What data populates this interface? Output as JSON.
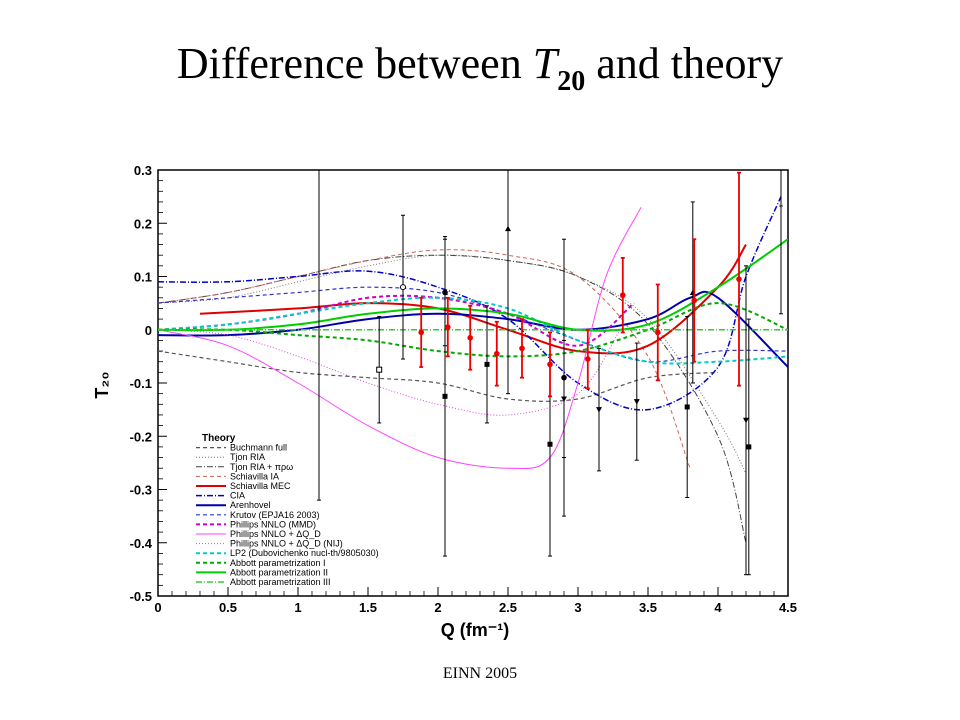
{
  "slide": {
    "title_prefix": "Difference between ",
    "title_symbol": "T",
    "title_subscript": "20",
    "title_suffix": " and theory",
    "footer": "EINN 2005"
  },
  "chart_data": {
    "type": "scatter",
    "xlabel": "Q (fm⁻¹)",
    "ylabel": "T₂₀",
    "xlim": [
      0,
      4.5
    ],
    "ylim": [
      -0.5,
      0.3
    ],
    "xticks": [
      "0",
      "0.5",
      "1",
      "1.5",
      "2",
      "2.5",
      "3",
      "3.5",
      "4",
      "4.5"
    ],
    "yticks": [
      "-0.5",
      "-0.4",
      "-0.3",
      "-0.2",
      "-0.1",
      "0",
      "0.1",
      "0.2",
      "0.3"
    ],
    "grid": false,
    "legend_title": "Theory",
    "legend_position": "lower-left",
    "series": [
      {
        "name": "Buchmann full",
        "color": "#555555",
        "dash": "4,3",
        "width": 1.2,
        "x": [
          0,
          0.5,
          1,
          1.5,
          2,
          2.5,
          3,
          3.5,
          4
        ],
        "y": [
          -0.04,
          -0.06,
          -0.08,
          -0.09,
          -0.1,
          -0.13,
          -0.13,
          -0.09,
          -0.08
        ]
      },
      {
        "name": "Tjon RIA",
        "color": "#777777",
        "dash": "1,2",
        "width": 1,
        "x": [
          0,
          0.5,
          1,
          1.5,
          2,
          2.5,
          3,
          3.5,
          4,
          4.2
        ],
        "y": [
          0.05,
          0.06,
          0.09,
          0.12,
          0.14,
          0.13,
          0.1,
          0.02,
          -0.17,
          -0.27
        ]
      },
      {
        "name": "Tjon RIA + πρω",
        "color": "#444444",
        "dash": "6,2,1,2",
        "width": 1,
        "x": [
          0,
          0.5,
          1,
          1.5,
          2,
          2.5,
          3,
          3.5,
          4,
          4.2
        ],
        "y": [
          0.05,
          0.07,
          0.1,
          0.13,
          0.14,
          0.13,
          0.1,
          0.01,
          -0.2,
          -0.4
        ]
      },
      {
        "name": "Schiavilla IA",
        "color": "#cc6655",
        "dash": "4,3",
        "width": 1,
        "x": [
          0,
          0.5,
          1,
          1.5,
          2,
          2.5,
          3,
          3.5,
          3.8
        ],
        "y": [
          0.05,
          0.07,
          0.1,
          0.13,
          0.15,
          0.14,
          0.1,
          -0.05,
          -0.26
        ]
      },
      {
        "name": "Schiavilla MEC",
        "color": "#dd0000",
        "dash": "",
        "width": 2,
        "x": [
          0.3,
          1,
          1.5,
          2,
          2.5,
          3,
          3.5,
          4,
          4.2
        ],
        "y": [
          0.03,
          0.04,
          0.05,
          0.04,
          0.0,
          -0.04,
          -0.03,
          0.08,
          0.16
        ]
      },
      {
        "name": "CIA",
        "color": "#0000cc",
        "dash": "6,2,1,2",
        "width": 1.5,
        "x": [
          0,
          0.5,
          1,
          1.5,
          2,
          2.5,
          3,
          3.5,
          4,
          4.2,
          4.45
        ],
        "y": [
          0.09,
          0.09,
          0.1,
          0.11,
          0.08,
          0.02,
          -0.1,
          -0.15,
          -0.07,
          0.1,
          0.25
        ]
      },
      {
        "name": "Arenhovel",
        "color": "#0000aa",
        "dash": "",
        "width": 2,
        "x": [
          0,
          0.5,
          1,
          1.5,
          2,
          2.5,
          3,
          3.5,
          3.8,
          4,
          4.5
        ],
        "y": [
          -0.01,
          -0.01,
          0.0,
          0.02,
          0.03,
          0.02,
          0.0,
          0.02,
          0.06,
          0.06,
          -0.07
        ]
      },
      {
        "name": "Krutov (EPJA16 2003)",
        "color": "#3333cc",
        "dash": "4,3",
        "width": 1.2,
        "x": [
          0,
          0.5,
          1,
          1.5,
          2,
          2.5,
          3,
          3.5,
          4,
          4.5
        ],
        "y": [
          0.05,
          0.06,
          0.07,
          0.08,
          0.07,
          0.03,
          -0.02,
          -0.06,
          -0.04,
          -0.04
        ]
      },
      {
        "name": "Phillips NNLO (MMD)",
        "color": "#cc00cc",
        "dash": "4,3",
        "width": 2,
        "x": [
          0,
          0.5,
          1,
          1.5,
          2,
          2.5,
          3,
          3.4
        ],
        "y": [
          0.0,
          0.01,
          0.03,
          0.06,
          0.06,
          0.03,
          -0.03,
          0.05
        ]
      },
      {
        "name": "Phillips NNLO + ΔQ_D",
        "color": "#ff44ff",
        "dash": "",
        "width": 1,
        "x": [
          0,
          0.5,
          1,
          1.5,
          2,
          2.5,
          2.8,
          3,
          3.2,
          3.45
        ],
        "y": [
          0.0,
          -0.03,
          -0.1,
          -0.18,
          -0.24,
          -0.26,
          -0.24,
          -0.1,
          0.1,
          0.23
        ]
      },
      {
        "name": "Phillips NNLO + ΔQ_D (NIJ)",
        "color": "#dd44dd",
        "dash": "1,2",
        "width": 1,
        "x": [
          0,
          0.5,
          1,
          1.5,
          2,
          2.5,
          3,
          3.3
        ],
        "y": [
          0.0,
          -0.01,
          -0.05,
          -0.1,
          -0.14,
          -0.16,
          -0.12,
          0.0
        ]
      },
      {
        "name": "LP2 (Dubovichenko nucl-th/9805030)",
        "color": "#00cccc",
        "dash": "4,3",
        "width": 2,
        "x": [
          0,
          0.5,
          1,
          1.5,
          2,
          2.5,
          3,
          3.5,
          4,
          4.5
        ],
        "y": [
          0.0,
          0.01,
          0.03,
          0.05,
          0.06,
          0.04,
          -0.02,
          -0.06,
          -0.06,
          -0.05
        ]
      },
      {
        "name": "Abbott parametrization I",
        "color": "#00aa00",
        "dash": "4,3",
        "width": 2,
        "x": [
          0,
          0.5,
          1,
          1.5,
          2,
          2.5,
          3,
          3.5,
          4,
          4.5
        ],
        "y": [
          0.0,
          0.0,
          -0.01,
          -0.02,
          -0.04,
          -0.05,
          -0.04,
          0.0,
          0.05,
          0.0
        ]
      },
      {
        "name": "Abbott parametrization II",
        "color": "#00cc00",
        "dash": "",
        "width": 2,
        "x": [
          0,
          0.5,
          1,
          1.5,
          2,
          2.5,
          3,
          3.5,
          4,
          4.5
        ],
        "y": [
          0.0,
          0.0,
          0.01,
          0.03,
          0.04,
          0.03,
          0.0,
          0.01,
          0.08,
          0.17
        ]
      },
      {
        "name": "Abbott parametrization III",
        "color": "#33cc33",
        "dash": "6,2,1,2",
        "width": 1.5,
        "x": [
          0,
          0.5,
          1,
          1.5,
          2,
          2.5,
          3,
          3.5,
          4,
          4.5
        ],
        "y": [
          0.0,
          0.0,
          0.0,
          0.0,
          0.0,
          0.0,
          0.0,
          0.0,
          0.0,
          0.0
        ]
      }
    ],
    "data_points": [
      {
        "x": 1.15,
        "y": 0.0,
        "err": 0.32,
        "color": "#000000",
        "marker": "none"
      },
      {
        "x": 1.58,
        "y": -0.075,
        "err": 0.1,
        "color": "#000000",
        "marker": "open-square"
      },
      {
        "x": 1.75,
        "y": 0.08,
        "err": 0.135,
        "color": "#000000",
        "marker": "open-circle"
      },
      {
        "x": 2.05,
        "y": -0.125,
        "err": 0.3,
        "color": "#000000",
        "marker": "square"
      },
      {
        "x": 2.05,
        "y": 0.07,
        "err": 0.1,
        "color": "#000000",
        "marker": "circle"
      },
      {
        "x": 2.35,
        "y": -0.065,
        "err": 0.11,
        "color": "#000000",
        "marker": "square"
      },
      {
        "x": 2.5,
        "y": 0.19,
        "err": 0.31,
        "color": "#000000",
        "marker": "triangle-up"
      },
      {
        "x": 2.8,
        "y": -0.215,
        "err": 0.21,
        "color": "#000000",
        "marker": "square"
      },
      {
        "x": 2.9,
        "y": -0.09,
        "err": 0.26,
        "color": "#000000",
        "marker": "circle"
      },
      {
        "x": 2.9,
        "y": -0.13,
        "err": 0.11,
        "color": "#000000",
        "marker": "triangle-down"
      },
      {
        "x": 3.15,
        "y": -0.15,
        "err": 0.115,
        "color": "#000000",
        "marker": "triangle-down"
      },
      {
        "x": 3.42,
        "y": -0.135,
        "err": 0.11,
        "color": "#000000",
        "marker": "triangle-down"
      },
      {
        "x": 3.78,
        "y": -0.145,
        "err": 0.17,
        "color": "#000000",
        "marker": "square"
      },
      {
        "x": 3.82,
        "y": 0.07,
        "err": 0.17,
        "color": "#000000",
        "marker": "triangle-up"
      },
      {
        "x": 4.2,
        "y": -0.17,
        "err": 0.29,
        "color": "#000000",
        "marker": "triangle-down"
      },
      {
        "x": 4.22,
        "y": -0.22,
        "err": 0.24,
        "color": "#000000",
        "marker": "square"
      },
      {
        "x": 4.45,
        "y": 0.23,
        "err": 0.2,
        "color": "#000000",
        "marker": "star"
      },
      {
        "x": 1.88,
        "y": -0.005,
        "err": 0.065,
        "color": "#ee0000",
        "marker": "circle"
      },
      {
        "x": 2.07,
        "y": 0.005,
        "err": 0.055,
        "color": "#ee0000",
        "marker": "circle"
      },
      {
        "x": 2.23,
        "y": -0.015,
        "err": 0.06,
        "color": "#ee0000",
        "marker": "circle"
      },
      {
        "x": 2.42,
        "y": -0.045,
        "err": 0.06,
        "color": "#ee0000",
        "marker": "circle"
      },
      {
        "x": 2.6,
        "y": -0.035,
        "err": 0.055,
        "color": "#ee0000",
        "marker": "circle"
      },
      {
        "x": 2.8,
        "y": -0.065,
        "err": 0.06,
        "color": "#ee0000",
        "marker": "circle"
      },
      {
        "x": 3.07,
        "y": -0.055,
        "err": 0.055,
        "color": "#ee0000",
        "marker": "circle"
      },
      {
        "x": 3.32,
        "y": 0.065,
        "err": 0.07,
        "color": "#ee0000",
        "marker": "circle"
      },
      {
        "x": 3.57,
        "y": -0.005,
        "err": 0.09,
        "color": "#ee0000",
        "marker": "circle"
      },
      {
        "x": 3.83,
        "y": 0.055,
        "err": 0.115,
        "color": "#ee0000",
        "marker": "circle"
      },
      {
        "x": 4.15,
        "y": 0.095,
        "err": 0.2,
        "color": "#ee0000",
        "marker": "circle"
      }
    ]
  }
}
